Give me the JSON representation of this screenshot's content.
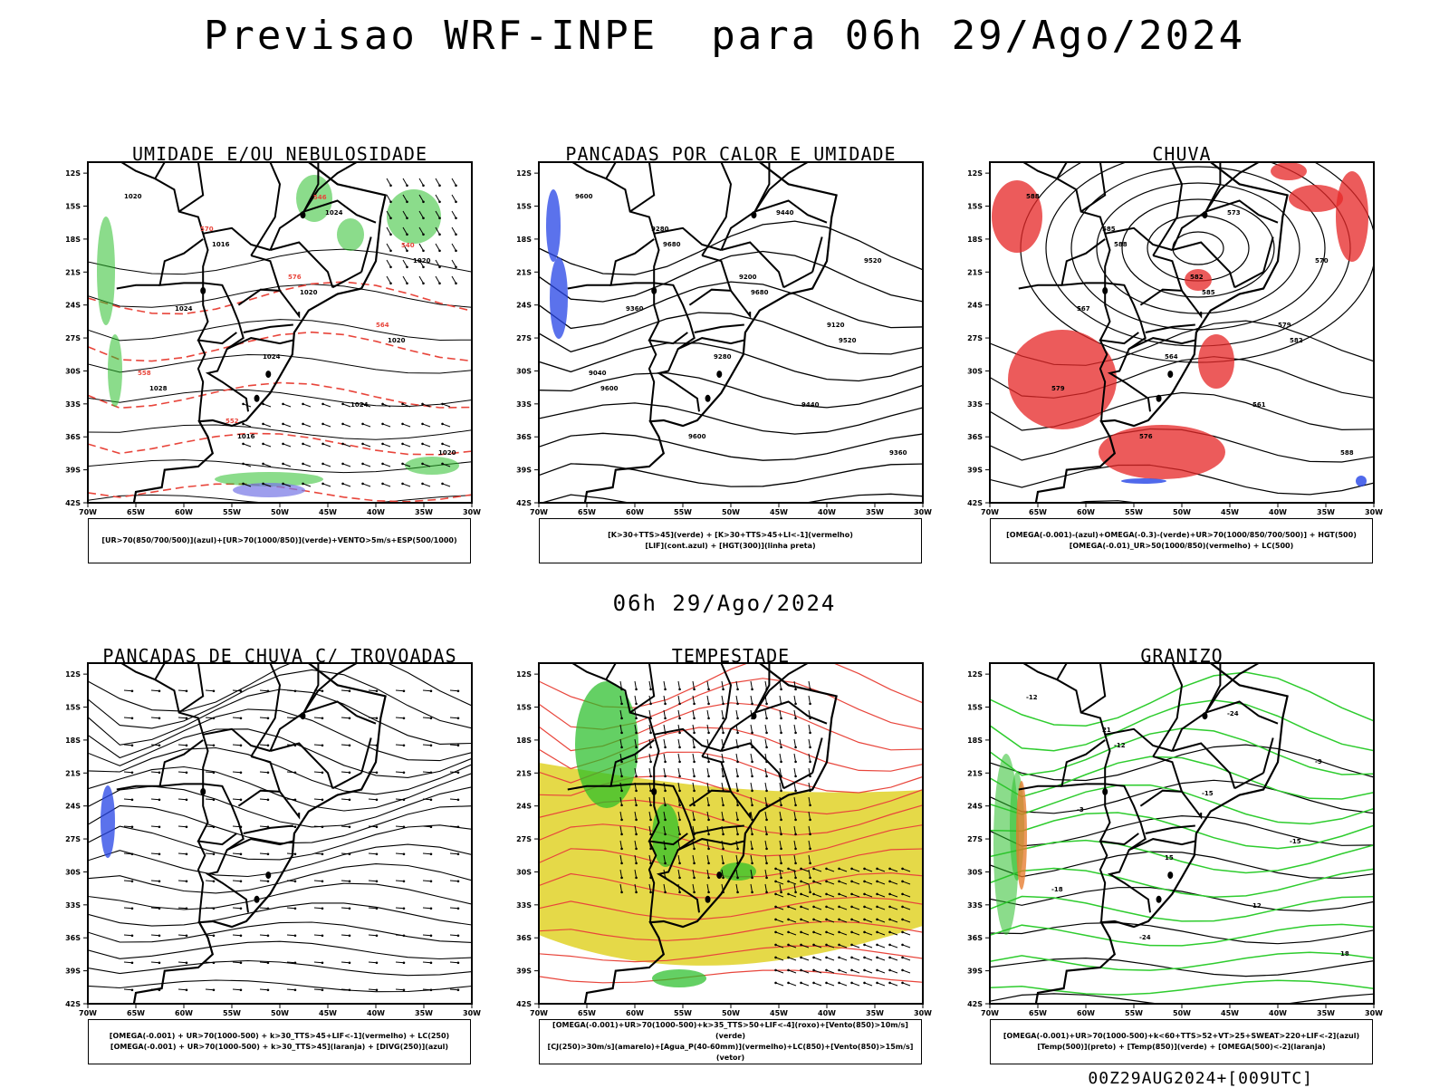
{
  "main_title": "Previsao WRF-INPE  para 06h 29/Ago/2024",
  "mid_date": "06h 29/Ago/2024",
  "footer": "00Z29AUG2024+[009UTC]",
  "axes": {
    "lat_labels": [
      "12S",
      "15S",
      "18S",
      "21S",
      "24S",
      "27S",
      "30S",
      "33S",
      "36S",
      "39S",
      "42S"
    ],
    "lon_labels": [
      "70W",
      "65W",
      "60W",
      "55W",
      "50W",
      "45W",
      "40W",
      "35W",
      "30W"
    ]
  },
  "panels": [
    {
      "id": "umidade",
      "title": "UMIDADE E/OU NEBULOSIDADE",
      "legend": [
        "[UR>70(850/700/500)](azul)+[UR>70(1000/850)](verde)+VENTO>5m/s+ESP(500/1000)"
      ],
      "contour_labels": [
        "1020",
        "1016",
        "1020",
        "1020",
        "1028",
        "1016",
        "1024",
        "1020",
        "1024",
        "1024",
        "1024",
        "1020",
        "570",
        "576",
        "564",
        "558",
        "552",
        "546",
        "540"
      ]
    },
    {
      "id": "pancadas-calor",
      "title": "PANCADAS POR CALOR E UMIDADE",
      "legend": [
        "[K>30+TTS>45](verde) + [K>30+TTS>45+LI<-1](vermelho)",
        "[LIF](cont.azul) + [HGT(300)](linha preta)"
      ],
      "contour_labels": [
        "9600",
        "9680",
        "9680",
        "9520",
        "9600",
        "9600",
        "9440",
        "9520",
        "9360",
        "9280",
        "9440",
        "9360",
        "9280",
        "9200",
        "9120",
        "9040"
      ]
    },
    {
      "id": "chuva",
      "title": "CHUVA",
      "legend": [
        "[OMEGA(-0.001)-(azul)+OMEGA(-0.3)-(verde)+UR>70(1000/850/700/500)] + HGT(500)",
        "[OMEGA(-0.01)_UR>50(1000/850)(vermelho) + LC(500)"
      ],
      "contour_labels": [
        "588",
        "588",
        "585",
        "582",
        "579",
        "576",
        "573",
        "570",
        "567",
        "564",
        "561",
        "588",
        "585",
        "582",
        "579"
      ]
    },
    {
      "id": "trovoadas",
      "title": "PANCADAS DE CHUVA C/ TROVOADAS",
      "legend": [
        "[OMEGA(-0.001) + UR>70(1000-500) + k>30_TTS>45+LIF<-1](vermelho) + LC(250)",
        "[OMEGA(-0.001) + UR>70(1000-500) + k>30_TTS>45](laranja) + [DIVG(250)](azul)"
      ],
      "contour_labels": []
    },
    {
      "id": "tempestade",
      "title": "TEMPESTADE",
      "legend": [
        "[OMEGA(-0.001)+UR>70(1000-500)+k>35_TTS>50+LIF<-4](roxo)+[Vento(850)>10m/s](verde)",
        "[CJ(250)>30m/s](amarelo)+[Agua_P(40-60mm)](vermelho)+LC(850)+[Vento(850)>15m/s](vetor)"
      ],
      "contour_labels": []
    },
    {
      "id": "granizo",
      "title": "GRANIZO",
      "legend": [
        "[OMEGA(-0.001)+UR>70(1000-500)+k<60+TTS>52+VT>25+SWEAT>220+LIF<-2](azul)",
        "[Temp(500)](preto) + [Temp(850)](verde) + [OMEGA(500)<-2](laranja)"
      ],
      "contour_labels": [
        "-12",
        "-12",
        "-15",
        "-15",
        "-18",
        "-24",
        "-24",
        "-9",
        "-3",
        "15",
        "12",
        "18",
        "21"
      ]
    }
  ]
}
